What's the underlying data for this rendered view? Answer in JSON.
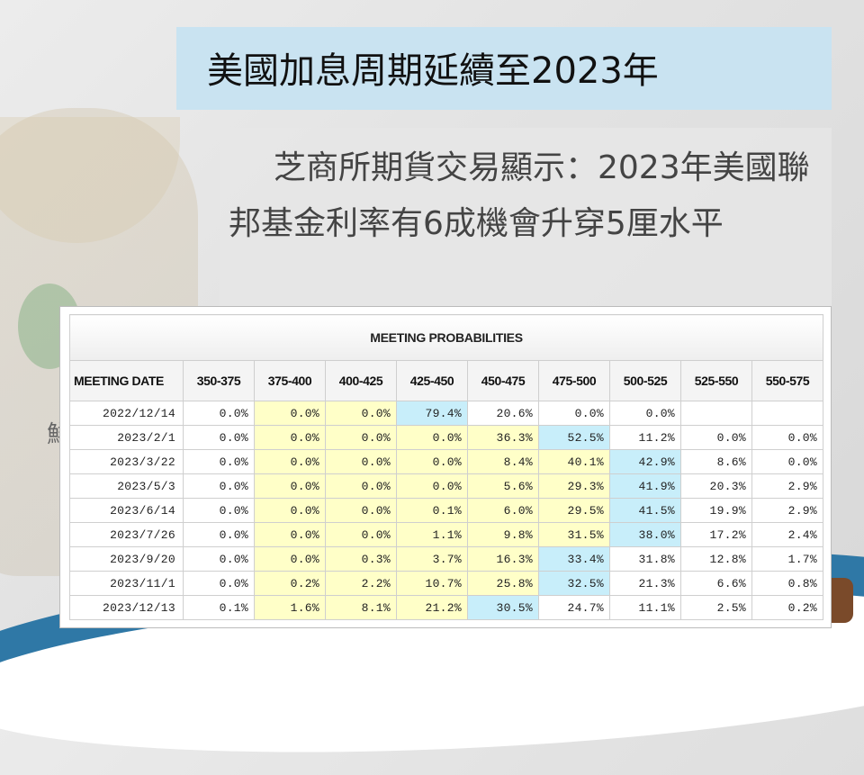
{
  "title": "美國加息周期延續至2023年",
  "subtitle": "芝商所期貨交易顯示：2023年美國聯邦基金利率有6成機會升穿5厘水平",
  "background_fragment": "鮮",
  "table": {
    "heading": "MEETING PROBABILITIES",
    "columns": [
      "MEETING DATE",
      "350-375",
      "375-400",
      "400-425",
      "425-450",
      "450-475",
      "475-500",
      "500-525",
      "525-550",
      "550-575"
    ],
    "rows": [
      {
        "date": "2022/12/14",
        "values": [
          "0.0%",
          "0.0%",
          "0.0%",
          "79.4%",
          "20.6%",
          "0.0%",
          "0.0%",
          "",
          ""
        ]
      },
      {
        "date": "2023/2/1",
        "values": [
          "0.0%",
          "0.0%",
          "0.0%",
          "0.0%",
          "36.3%",
          "52.5%",
          "11.2%",
          "0.0%",
          "0.0%"
        ]
      },
      {
        "date": "2023/3/22",
        "values": [
          "0.0%",
          "0.0%",
          "0.0%",
          "0.0%",
          "8.4%",
          "40.1%",
          "42.9%",
          "8.6%",
          "0.0%"
        ]
      },
      {
        "date": "2023/5/3",
        "values": [
          "0.0%",
          "0.0%",
          "0.0%",
          "0.0%",
          "5.6%",
          "29.3%",
          "41.9%",
          "20.3%",
          "2.9%"
        ]
      },
      {
        "date": "2023/6/14",
        "values": [
          "0.0%",
          "0.0%",
          "0.0%",
          "0.1%",
          "6.0%",
          "29.5%",
          "41.5%",
          "19.9%",
          "2.9%"
        ]
      },
      {
        "date": "2023/7/26",
        "values": [
          "0.0%",
          "0.0%",
          "0.0%",
          "1.1%",
          "9.8%",
          "31.5%",
          "38.0%",
          "17.2%",
          "2.4%"
        ]
      },
      {
        "date": "2023/9/20",
        "values": [
          "0.0%",
          "0.0%",
          "0.3%",
          "3.7%",
          "16.3%",
          "33.4%",
          "31.8%",
          "12.8%",
          "1.7%"
        ]
      },
      {
        "date": "2023/11/1",
        "values": [
          "0.0%",
          "0.2%",
          "2.2%",
          "10.7%",
          "25.8%",
          "32.5%",
          "21.3%",
          "6.6%",
          "0.8%"
        ]
      },
      {
        "date": "2023/12/13",
        "values": [
          "0.1%",
          "1.6%",
          "8.1%",
          "21.2%",
          "30.5%",
          "24.7%",
          "11.1%",
          "2.5%",
          "0.2%"
        ]
      }
    ],
    "colors": {
      "yellow": "#ffffc8",
      "blue": "#c8eefa"
    }
  }
}
